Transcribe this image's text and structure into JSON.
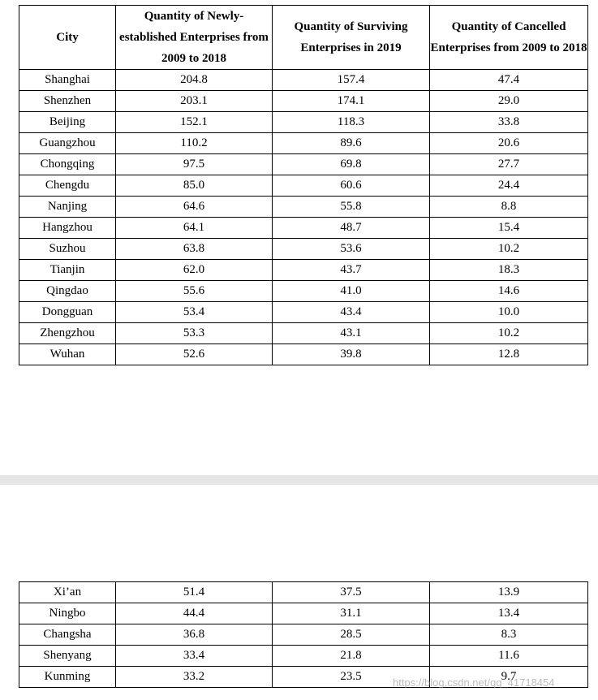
{
  "table": {
    "headers": [
      "City",
      "Quantity of Newly-established Enterprises from 2009 to 2018",
      "Quantity of Surviving Enterprises in 2019",
      "Quantity of Cancelled Enterprises from 2009 to 2018"
    ],
    "page1_rows": [
      [
        "Shanghai",
        "204.8",
        "157.4",
        "47.4"
      ],
      [
        "Shenzhen",
        "203.1",
        "174.1",
        "29.0"
      ],
      [
        "Beijing",
        "152.1",
        "118.3",
        "33.8"
      ],
      [
        "Guangzhou",
        "110.2",
        "89.6",
        "20.6"
      ],
      [
        "Chongqing",
        "97.5",
        "69.8",
        "27.7"
      ],
      [
        "Chengdu",
        "85.0",
        "60.6",
        "24.4"
      ],
      [
        "Nanjing",
        "64.6",
        "55.8",
        "8.8"
      ],
      [
        "Hangzhou",
        "64.1",
        "48.7",
        "15.4"
      ],
      [
        "Suzhou",
        "63.8",
        "53.6",
        "10.2"
      ],
      [
        "Tianjin",
        "62.0",
        "43.7",
        "18.3"
      ],
      [
        "Qingdao",
        "55.6",
        "41.0",
        "14.6"
      ],
      [
        "Dongguan",
        "53.4",
        "43.4",
        "10.0"
      ],
      [
        "Zhengzhou",
        "53.3",
        "43.1",
        "10.2"
      ],
      [
        "Wuhan",
        "52.6",
        "39.8",
        "12.8"
      ]
    ],
    "page2_rows": [
      [
        "Xi’an",
        "51.4",
        "37.5",
        "13.9"
      ],
      [
        "Ningbo",
        "44.4",
        "31.1",
        "13.4"
      ],
      [
        "Changsha",
        "36.8",
        "28.5",
        "8.3"
      ],
      [
        "Shenyang",
        "33.4",
        "21.8",
        "11.6"
      ],
      [
        "Kunming",
        "33.2",
        "23.5",
        "9.7"
      ]
    ]
  },
  "watermark": "https://blog.csdn.net/qq_41718454"
}
